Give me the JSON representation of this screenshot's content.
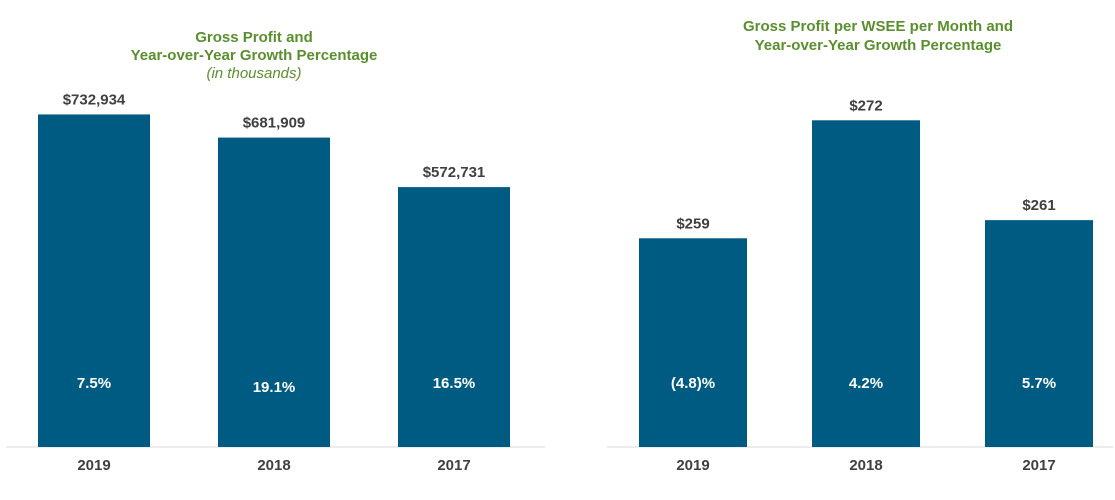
{
  "colors": {
    "bar": "#005b82",
    "title": "#5a8f2e",
    "axis": "#d9d9d9",
    "value_text": "#404040",
    "growth_text": "#ffffff"
  },
  "chart_data": [
    {
      "type": "bar",
      "title": "Gross Profit and",
      "title_line2": "Year-over-Year  Growth Percentage",
      "subtitle": "(in thousands)",
      "categories": [
        "2019",
        "2018",
        "2017"
      ],
      "values": [
        732934,
        681909,
        572731
      ],
      "value_labels": [
        "$732,934",
        "$681,909",
        "$572,731"
      ],
      "growth_labels": [
        "7.5%",
        "19.1%",
        "16.5%"
      ],
      "ylim": [
        0,
        800000
      ]
    },
    {
      "type": "bar",
      "title": "Gross Profit per WSEE per Month and",
      "title_line2": "Year-over-Year  Growth Percentage",
      "categories": [
        "2019",
        "2018",
        "2017"
      ],
      "values": [
        259,
        272,
        261
      ],
      "value_labels": [
        "$259",
        "$272",
        "$261"
      ],
      "growth_labels": [
        "(4.8)%",
        "4.2%",
        "5.7%"
      ],
      "ylim": [
        236,
        276
      ]
    }
  ]
}
